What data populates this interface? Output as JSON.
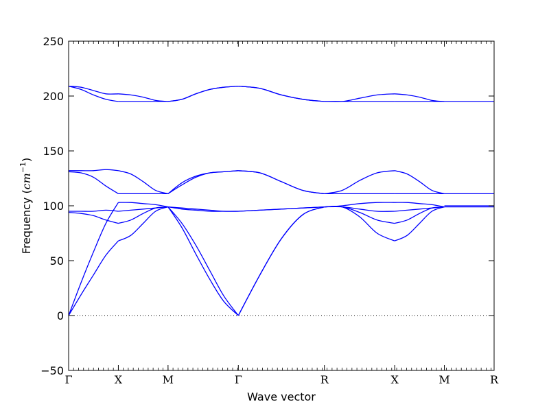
{
  "chart_data": {
    "type": "line",
    "title": "",
    "xlabel": "Wave vector",
    "ylabel": "Frequency ($cm^{-1}$)",
    "ylabel_parts": {
      "prefix": "Frequency (",
      "unit_base": "cm",
      "unit_exp": "−1",
      "suffix": ")"
    },
    "ylim": [
      -50,
      250
    ],
    "yticks": [
      -50,
      0,
      50,
      100,
      150,
      200,
      250
    ],
    "ytick_labels": [
      "−50",
      "0",
      "50",
      "100",
      "150",
      "200",
      "250"
    ],
    "grid": false,
    "zero_line": {
      "y": 0,
      "style": "dotted"
    },
    "line_color": "#0000ff",
    "x_path": {
      "labels": [
        "Γ",
        "X",
        "M",
        "Γ",
        "R",
        "X",
        "M",
        "R"
      ],
      "distances": [
        0,
        0.5,
        1.0,
        1.707,
        2.573,
        3.28,
        3.78,
        4.28
      ]
    },
    "series": [
      {
        "segment": "Γ-X",
        "x": [
          0,
          0.125,
          0.25,
          0.375,
          0.5
        ],
        "y": [
          0,
          19,
          37,
          55,
          68
        ]
      },
      {
        "segment": "Γ-X",
        "x": [
          0,
          0.125,
          0.25,
          0.375,
          0.5
        ],
        "y": [
          0,
          30,
          58,
          84,
          103
        ]
      },
      {
        "segment": "Γ-X",
        "x": [
          0,
          0.125,
          0.25,
          0.375,
          0.5
        ],
        "y": [
          94,
          93,
          91,
          87,
          84
        ]
      },
      {
        "segment": "Γ-X",
        "x": [
          0,
          0.125,
          0.25,
          0.375,
          0.5
        ],
        "y": [
          95,
          95,
          95,
          96,
          95
        ]
      },
      {
        "segment": "Γ-X",
        "x": [
          0,
          0.125,
          0.25,
          0.375,
          0.5
        ],
        "y": [
          131,
          130,
          126,
          118,
          111
        ]
      },
      {
        "segment": "Γ-X",
        "x": [
          0,
          0.125,
          0.25,
          0.375,
          0.5
        ],
        "y": [
          132,
          132,
          132,
          133,
          132
        ]
      },
      {
        "segment": "Γ-X",
        "x": [
          0,
          0.125,
          0.25,
          0.375,
          0.5
        ],
        "y": [
          209,
          206,
          201,
          197,
          195
        ]
      },
      {
        "segment": "Γ-X",
        "x": [
          0,
          0.125,
          0.25,
          0.375,
          0.5
        ],
        "y": [
          209,
          208,
          205,
          202,
          202
        ]
      },
      {
        "segment": "X-M",
        "x": [
          0.5,
          0.625,
          0.75,
          0.875,
          1.0
        ],
        "y": [
          68,
          73,
          84,
          95,
          99
        ]
      },
      {
        "segment": "X-M",
        "x": [
          0.5,
          0.625,
          0.75,
          0.875,
          1.0
        ],
        "y": [
          103,
          103,
          102,
          101,
          99
        ]
      },
      {
        "segment": "X-M",
        "x": [
          0.5,
          0.625,
          0.75,
          0.875,
          1.0
        ],
        "y": [
          84,
          87,
          93,
          98,
          99
        ]
      },
      {
        "segment": "X-M",
        "x": [
          0.5,
          0.625,
          0.75,
          0.875,
          1.0
        ],
        "y": [
          95,
          96,
          97,
          98,
          99
        ]
      },
      {
        "segment": "X-M",
        "x": [
          0.5,
          0.625,
          0.75,
          0.875,
          1.0
        ],
        "y": [
          111,
          111,
          111,
          111,
          111
        ]
      },
      {
        "segment": "X-M",
        "x": [
          0.5,
          0.625,
          0.75,
          0.875,
          1.0
        ],
        "y": [
          132,
          129,
          122,
          114,
          111
        ]
      },
      {
        "segment": "X-M",
        "x": [
          0.5,
          0.625,
          0.75,
          0.875,
          1.0
        ],
        "y": [
          195,
          195,
          195,
          195,
          195
        ]
      },
      {
        "segment": "X-M",
        "x": [
          0.5,
          0.625,
          0.75,
          0.875,
          1.0
        ],
        "y": [
          202,
          201,
          199,
          196,
          195
        ]
      },
      {
        "segment": "M-Γ",
        "x": [
          1.0,
          1.14,
          1.28,
          1.42,
          1.56,
          1.707
        ],
        "y": [
          99,
          84,
          64,
          41,
          18,
          0
        ]
      },
      {
        "segment": "M-Γ",
        "x": [
          1.0,
          1.14,
          1.28,
          1.42,
          1.56,
          1.707
        ],
        "y": [
          99,
          80,
          56,
          33,
          13,
          0
        ]
      },
      {
        "segment": "M-Γ",
        "x": [
          1.0,
          1.14,
          1.28,
          1.42,
          1.56,
          1.707
        ],
        "y": [
          99,
          97,
          96,
          95,
          95,
          95
        ]
      },
      {
        "segment": "M-Γ",
        "x": [
          1.0,
          1.14,
          1.28,
          1.42,
          1.56,
          1.707
        ],
        "y": [
          99,
          98,
          97,
          96,
          95,
          95
        ]
      },
      {
        "segment": "M-Γ",
        "x": [
          1.0,
          1.14,
          1.28,
          1.42,
          1.56,
          1.707
        ],
        "y": [
          111,
          119,
          126,
          130,
          131,
          132
        ]
      },
      {
        "segment": "M-Γ",
        "x": [
          1.0,
          1.14,
          1.28,
          1.42,
          1.56,
          1.707
        ],
        "y": [
          111,
          121,
          127,
          130,
          131,
          132
        ]
      },
      {
        "segment": "M-Γ",
        "x": [
          1.0,
          1.14,
          1.28,
          1.42,
          1.56,
          1.707
        ],
        "y": [
          195,
          197,
          202,
          206,
          208,
          209
        ]
      },
      {
        "segment": "M-Γ",
        "x": [
          1.0,
          1.14,
          1.28,
          1.42,
          1.56,
          1.707
        ],
        "y": [
          195,
          197,
          202,
          206,
          208,
          209
        ]
      },
      {
        "segment": "Γ-R",
        "x": [
          1.707,
          1.924,
          2.14,
          2.357,
          2.573
        ],
        "y": [
          0,
          37,
          70,
          92,
          99
        ]
      },
      {
        "segment": "Γ-R",
        "x": [
          1.707,
          1.924,
          2.14,
          2.357,
          2.573
        ],
        "y": [
          0,
          37,
          70,
          92,
          99
        ]
      },
      {
        "segment": "Γ-R",
        "x": [
          1.707,
          1.924,
          2.14,
          2.357,
          2.573
        ],
        "y": [
          95,
          96,
          97,
          98,
          99
        ]
      },
      {
        "segment": "Γ-R",
        "x": [
          1.707,
          1.924,
          2.14,
          2.357,
          2.573
        ],
        "y": [
          95,
          96,
          97,
          98,
          99
        ]
      },
      {
        "segment": "Γ-R",
        "x": [
          1.707,
          1.924,
          2.14,
          2.357,
          2.573
        ],
        "y": [
          132,
          130,
          122,
          114,
          111
        ]
      },
      {
        "segment": "Γ-R",
        "x": [
          1.707,
          1.924,
          2.14,
          2.357,
          2.573
        ],
        "y": [
          132,
          130,
          122,
          114,
          111
        ]
      },
      {
        "segment": "Γ-R",
        "x": [
          1.707,
          1.924,
          2.14,
          2.357,
          2.573
        ],
        "y": [
          209,
          207,
          201,
          197,
          195
        ]
      },
      {
        "segment": "Γ-R",
        "x": [
          1.707,
          1.924,
          2.14,
          2.357,
          2.573
        ],
        "y": [
          209,
          207,
          201,
          197,
          195
        ]
      },
      {
        "segment": "R-X",
        "x": [
          2.573,
          2.75,
          2.927,
          3.103,
          3.28
        ],
        "y": [
          99,
          99,
          90,
          75,
          68
        ]
      },
      {
        "segment": "R-X",
        "x": [
          2.573,
          2.75,
          2.927,
          3.103,
          3.28
        ],
        "y": [
          99,
          99,
          94,
          87,
          84
        ]
      },
      {
        "segment": "R-X",
        "x": [
          2.573,
          2.75,
          2.927,
          3.103,
          3.28
        ],
        "y": [
          99,
          99,
          97,
          95,
          95
        ]
      },
      {
        "segment": "R-X",
        "x": [
          2.573,
          2.75,
          2.927,
          3.103,
          3.28
        ],
        "y": [
          99,
          100,
          102,
          103,
          103
        ]
      },
      {
        "segment": "R-X",
        "x": [
          2.573,
          2.75,
          2.927,
          3.103,
          3.28
        ],
        "y": [
          111,
          111,
          111,
          111,
          111
        ]
      },
      {
        "segment": "R-X",
        "x": [
          2.573,
          2.75,
          2.927,
          3.103,
          3.28
        ],
        "y": [
          111,
          114,
          123,
          130,
          132
        ]
      },
      {
        "segment": "R-X",
        "x": [
          2.573,
          2.75,
          2.927,
          3.103,
          3.28
        ],
        "y": [
          195,
          195,
          195,
          195,
          195
        ]
      },
      {
        "segment": "R-X",
        "x": [
          2.573,
          2.75,
          2.927,
          3.103,
          3.28
        ],
        "y": [
          195,
          195,
          198,
          201,
          202
        ]
      },
      {
        "segment": "X-M",
        "x": [
          3.28,
          3.405,
          3.53,
          3.655,
          3.78
        ],
        "y": [
          68,
          73,
          84,
          95,
          99
        ]
      },
      {
        "segment": "X-M",
        "x": [
          3.28,
          3.405,
          3.53,
          3.655,
          3.78
        ],
        "y": [
          84,
          87,
          93,
          98,
          99
        ]
      },
      {
        "segment": "X-M",
        "x": [
          3.28,
          3.405,
          3.53,
          3.655,
          3.78
        ],
        "y": [
          95,
          96,
          97,
          98,
          99
        ]
      },
      {
        "segment": "X-M",
        "x": [
          3.28,
          3.405,
          3.53,
          3.655,
          3.78
        ],
        "y": [
          103,
          103,
          102,
          101,
          99
        ]
      },
      {
        "segment": "X-M",
        "x": [
          3.28,
          3.405,
          3.53,
          3.655,
          3.78
        ],
        "y": [
          111,
          111,
          111,
          111,
          111
        ]
      },
      {
        "segment": "X-M",
        "x": [
          3.28,
          3.405,
          3.53,
          3.655,
          3.78
        ],
        "y": [
          132,
          129,
          122,
          114,
          111
        ]
      },
      {
        "segment": "X-M",
        "x": [
          3.28,
          3.405,
          3.53,
          3.655,
          3.78
        ],
        "y": [
          195,
          195,
          195,
          195,
          195
        ]
      },
      {
        "segment": "X-M",
        "x": [
          3.28,
          3.405,
          3.53,
          3.655,
          3.78
        ],
        "y": [
          202,
          201,
          199,
          196,
          195
        ]
      },
      {
        "segment": "M-R",
        "x": [
          3.78,
          3.905,
          4.03,
          4.155,
          4.28
        ],
        "y": [
          99,
          99,
          99,
          99,
          99
        ]
      },
      {
        "segment": "M-R",
        "x": [
          3.78,
          3.905,
          4.03,
          4.155,
          4.28
        ],
        "y": [
          100,
          100,
          100,
          100,
          100
        ]
      },
      {
        "segment": "M-R",
        "x": [
          3.78,
          3.905,
          4.03,
          4.155,
          4.28
        ],
        "y": [
          111,
          111,
          111,
          111,
          111
        ]
      },
      {
        "segment": "M-R",
        "x": [
          3.78,
          3.905,
          4.03,
          4.155,
          4.28
        ],
        "y": [
          195,
          195,
          195,
          195,
          195
        ]
      }
    ]
  }
}
